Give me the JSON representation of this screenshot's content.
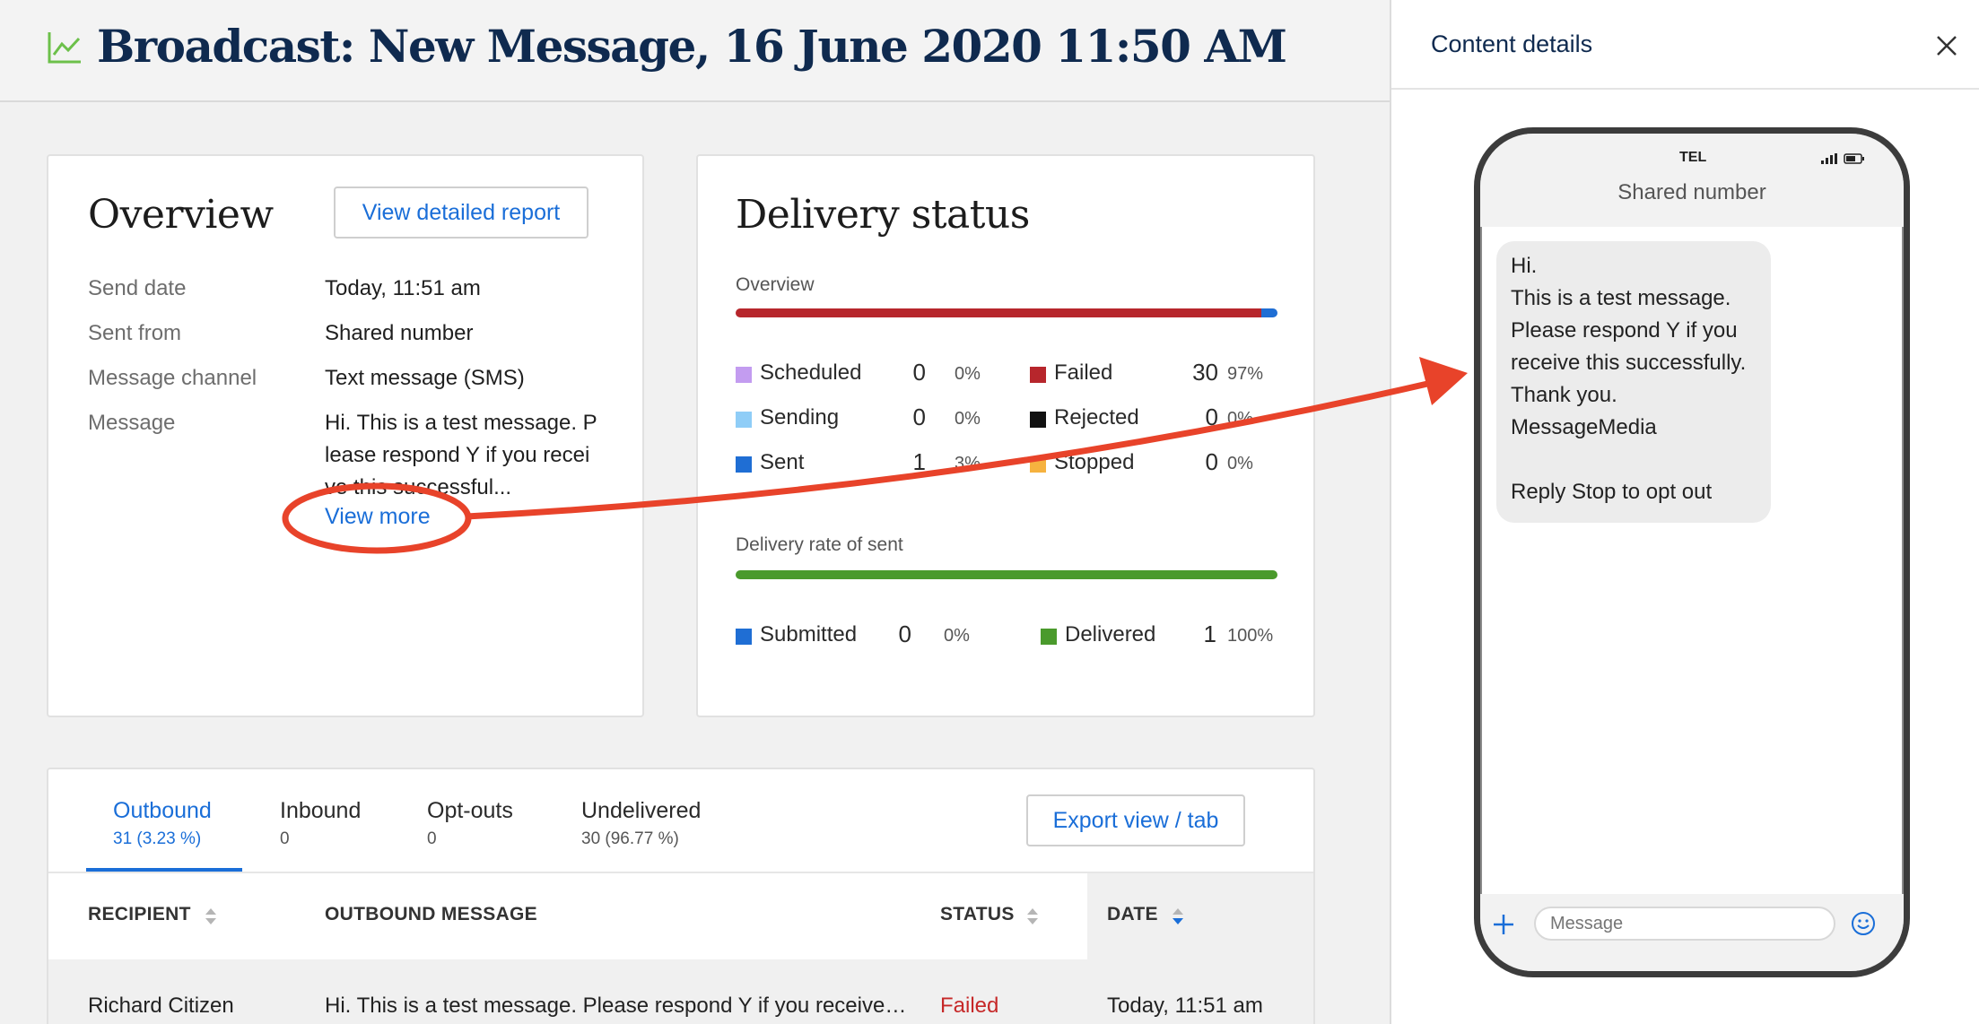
{
  "header": {
    "title": "Broadcast: New Message, 16 June 2020 11:50 AM",
    "icon": "line-chart-icon",
    "icon_color": "#6cc04a"
  },
  "overview": {
    "heading": "Overview",
    "report_button": "View detailed report",
    "rows": [
      {
        "label": "Send date",
        "value": "Today, 11:51 am"
      },
      {
        "label": "Sent from",
        "value": "Shared number"
      },
      {
        "label": "Message channel",
        "value": "Text message (SMS)"
      }
    ],
    "message_label": "Message",
    "message_value": "Hi. This is a test message. Please respond Y if you receive this successful...",
    "view_more": "View more"
  },
  "delivery": {
    "heading": "Delivery status",
    "overview_label": "Overview",
    "overview_bar": {
      "failed_fraction": 0.97,
      "sent_fraction": 0.03
    },
    "legend": [
      {
        "name": "Scheduled",
        "count": "0",
        "pct": "0%",
        "color": "#c39cf0"
      },
      {
        "name": "Sending",
        "count": "0",
        "pct": "0%",
        "color": "#8fcdf7"
      },
      {
        "name": "Sent",
        "count": "1",
        "pct": "3%",
        "color": "#1f6ed4"
      },
      {
        "name": "Failed",
        "count": "30",
        "pct": "97%",
        "color": "#b7262c"
      },
      {
        "name": "Rejected",
        "count": "0",
        "pct": "0%",
        "color": "#111111"
      },
      {
        "name": "Stopped",
        "count": "0",
        "pct": "0%",
        "color": "#f6b23f"
      }
    ],
    "rate_label": "Delivery rate of sent",
    "rate_bar": {
      "delivered_fraction": 1.0
    },
    "rate_legend": [
      {
        "name": "Submitted",
        "count": "0",
        "pct": "0%",
        "color": "#1f6ed4"
      },
      {
        "name": "Delivered",
        "count": "1",
        "pct": "100%",
        "color": "#4a9a2c"
      }
    ]
  },
  "table": {
    "tabs": [
      {
        "label": "Outbound",
        "count": "31 (3.23 %)",
        "active": true
      },
      {
        "label": "Inbound",
        "count": "0",
        "active": false
      },
      {
        "label": "Opt-outs",
        "count": "0",
        "active": false
      },
      {
        "label": "Undelivered",
        "count": "30 (96.77 %)",
        "active": false
      }
    ],
    "export_button": "Export view / tab",
    "columns": [
      "RECIPIENT",
      "OUTBOUND MESSAGE",
      "STATUS",
      "DATE"
    ],
    "rows": [
      {
        "recipient": "Richard Citizen",
        "message": "Hi. This is a test message. Please respond Y if you receive…",
        "status": "Failed",
        "date": "Today, 11:51 am"
      }
    ],
    "status_failed_color": "#c62828"
  },
  "panel": {
    "title": "Content details",
    "phone": {
      "carrier": "TEL",
      "sender": "Shared number",
      "message": "Hi.\nThis is a test message.\nPlease respond Y if you\nreceive this successfully.\nThank you.\nMessageMedia\n\nReply Stop to opt out",
      "input_placeholder": "Message"
    }
  },
  "colors": {
    "accent": "#1a6ed8",
    "annotation": "#e8432a",
    "title": "#0f2a4f"
  }
}
